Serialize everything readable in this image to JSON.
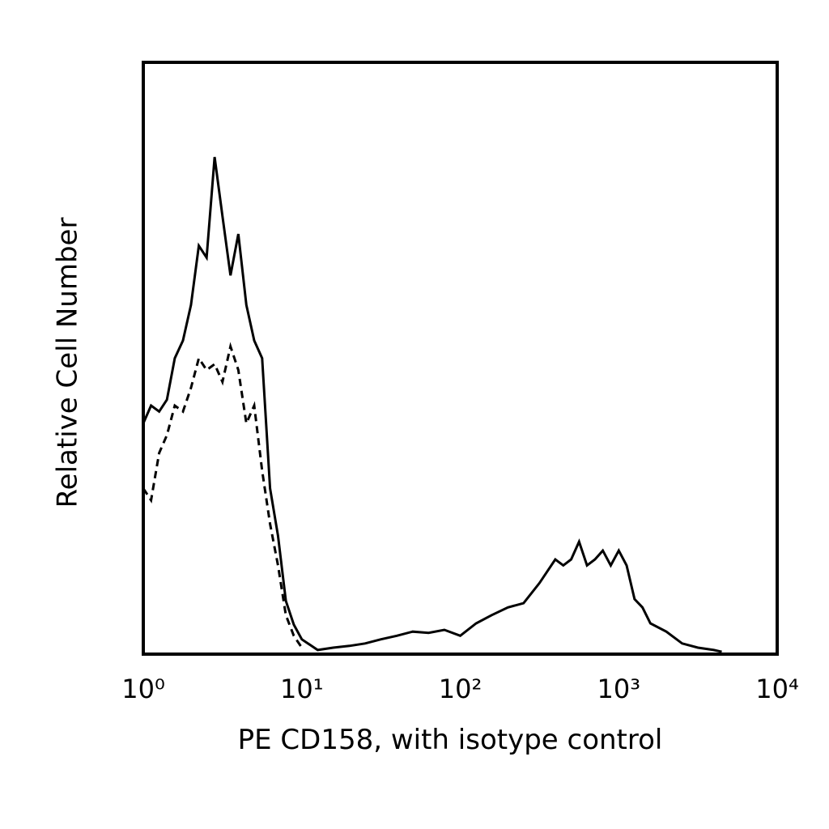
{
  "chart_data": {
    "type": "line",
    "xlabel": "PE CD158, with isotype control",
    "ylabel": "Relative Cell Number",
    "xscale": "log",
    "xlim": [
      1,
      10000
    ],
    "xticks": [
      {
        "value": 1,
        "label": "10⁰"
      },
      {
        "value": 10,
        "label": "10¹"
      },
      {
        "value": 100,
        "label": "10²"
      },
      {
        "value": 1000,
        "label": "10³"
      },
      {
        "value": 10000,
        "label": "10⁴"
      }
    ],
    "ylim": [
      0,
      100
    ],
    "grid": false,
    "series": [
      {
        "color": "#000000",
        "style": "solid",
        "x": [
          1,
          1.12,
          1.26,
          1.41,
          1.58,
          1.78,
          2.0,
          2.24,
          2.51,
          2.82,
          3.16,
          3.55,
          3.98,
          4.47,
          5.01,
          5.62,
          6.31,
          7.08,
          7.94,
          8.91,
          10,
          12.6,
          15.8,
          20.0,
          25.1,
          31.6,
          39.8,
          50.1,
          63.1,
          79.4,
          100,
          126,
          158,
          200,
          251,
          316,
          398,
          447,
          501,
          562,
          631,
          708,
          794,
          891,
          1000,
          1122,
          1259,
          1413,
          1585,
          1995,
          2512,
          3162,
          3981,
          4467
        ],
        "values": [
          39,
          42,
          41,
          43,
          50,
          53,
          59,
          69,
          67,
          84,
          74,
          64,
          71,
          59,
          53,
          50,
          28,
          20,
          9,
          5,
          2.5,
          0.7,
          1.1,
          1.4,
          1.8,
          2.5,
          3.1,
          3.8,
          3.6,
          4.1,
          3.1,
          5.2,
          6.6,
          7.9,
          8.6,
          12,
          16,
          15,
          16,
          19,
          15,
          16,
          17.5,
          15,
          17.5,
          15,
          9.3,
          7.9,
          5.2,
          3.8,
          1.8,
          1.1,
          0.7,
          0.4
        ]
      },
      {
        "color": "#000000",
        "style": "dashed",
        "x": [
          1,
          1.12,
          1.26,
          1.41,
          1.58,
          1.78,
          2.0,
          2.24,
          2.51,
          2.82,
          3.16,
          3.55,
          3.98,
          4.47,
          5.01,
          5.62,
          6.31,
          7.08,
          7.94,
          8.91,
          10
        ],
        "values": [
          28,
          26,
          34,
          37,
          42,
          41,
          45,
          50,
          48,
          49,
          46,
          52,
          48,
          39,
          42,
          31,
          22,
          15,
          6.6,
          3.1,
          1.1
        ]
      }
    ]
  }
}
